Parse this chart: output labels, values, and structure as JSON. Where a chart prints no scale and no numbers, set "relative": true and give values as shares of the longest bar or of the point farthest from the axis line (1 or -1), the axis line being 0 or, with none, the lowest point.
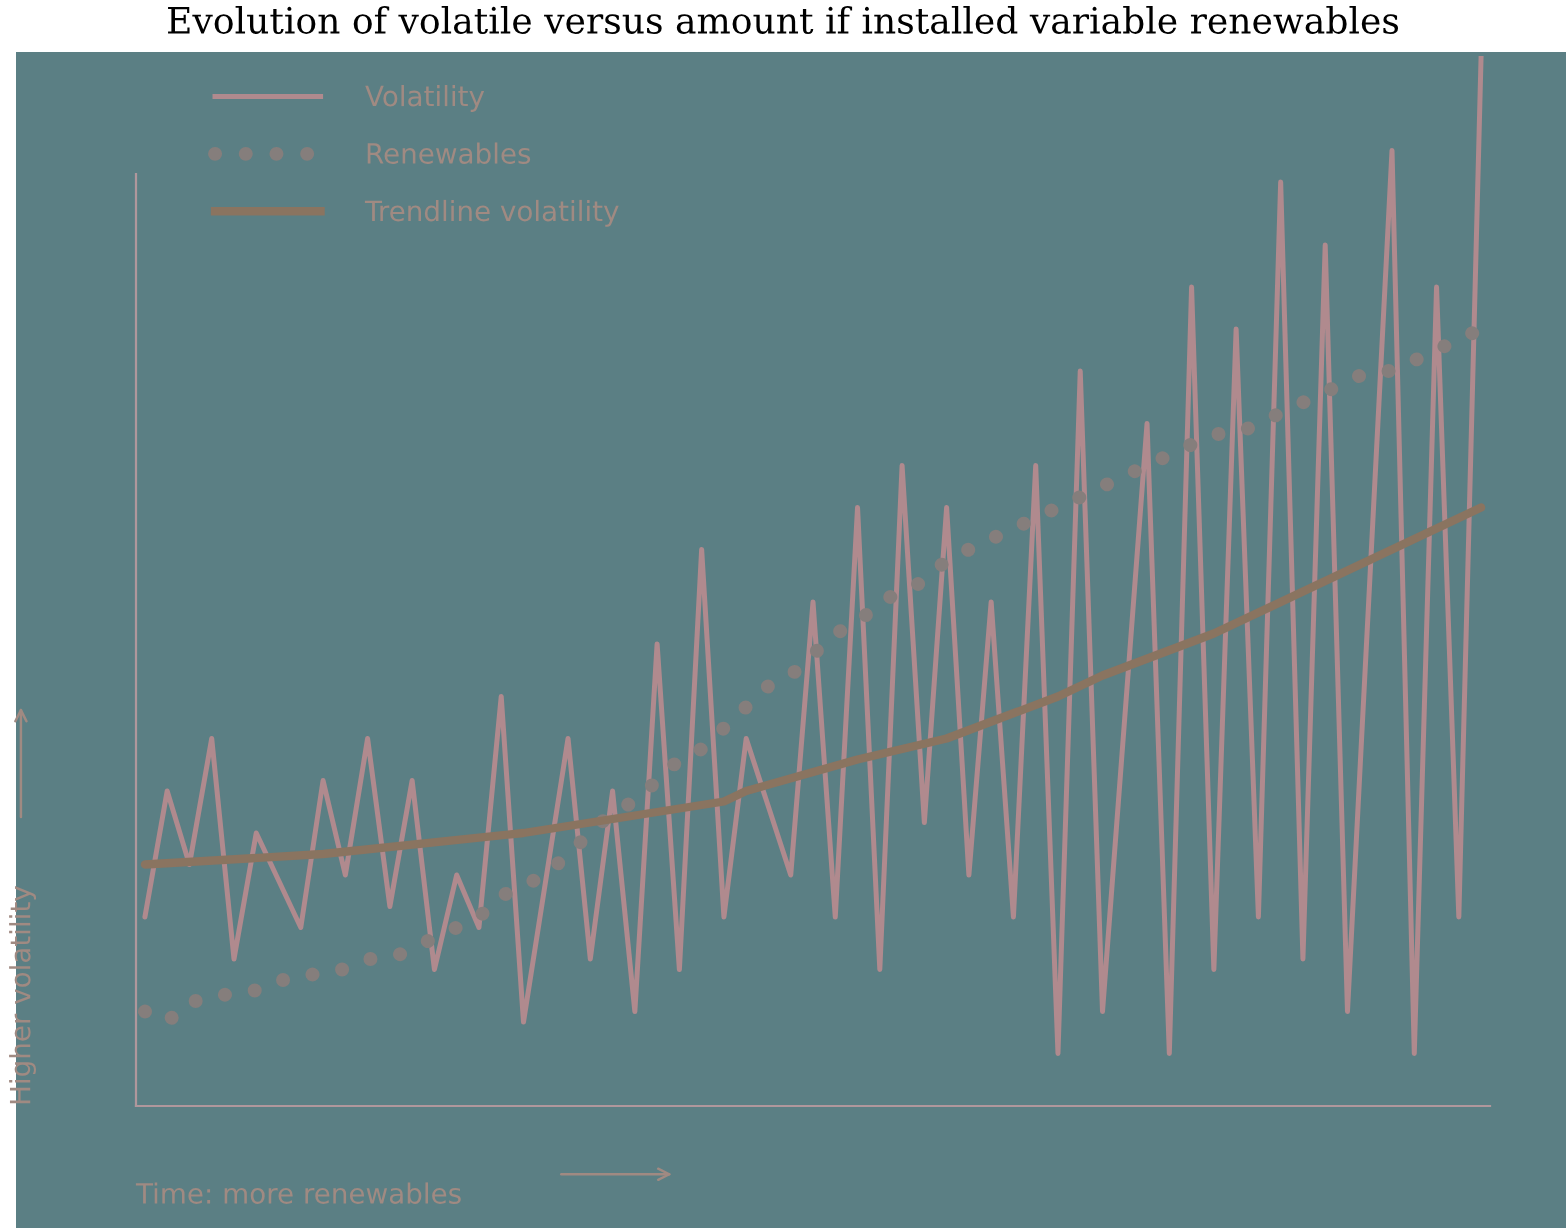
{
  "chart_data": {
    "type": "line",
    "title": "Evolution of volatile versus amount if installed variable renewables",
    "xlabel": "Time: more renewables",
    "ylabel": "Higher volatility",
    "relative": true,
    "legend": "top left",
    "marker": "none",
    "categories": [
      null,
      null,
      null,
      null,
      null,
      null,
      null,
      null,
      null,
      null,
      null,
      null,
      null,
      null,
      null,
      null,
      null,
      null,
      null,
      null,
      null,
      null,
      null,
      null,
      null,
      null,
      null,
      null,
      null,
      null,
      null,
      null,
      null,
      null,
      null,
      null,
      null,
      null,
      null,
      null,
      null,
      null,
      null,
      null,
      null,
      null,
      null,
      null,
      null,
      null,
      null,
      null,
      null,
      null,
      null,
      null,
      null,
      null,
      null,
      null,
      null
    ],
    "series": [
      {
        "name": "Volatility",
        "color": "#b08a8e",
        "line_style": "solid",
        "values": [
          0.18,
          0.3,
          0.23,
          0.35,
          0.14,
          0.26,
          null,
          0.17,
          0.31,
          0.22,
          0.35,
          0.19,
          0.31,
          0.13,
          0.22,
          0.17,
          0.39,
          0.08,
          null,
          0.35,
          0.14,
          0.3,
          0.09,
          0.44,
          0.13,
          0.53,
          0.18,
          0.35,
          null,
          0.22,
          0.48,
          0.18,
          0.57,
          0.13,
          0.61,
          0.27,
          0.57,
          0.22,
          0.48,
          0.18,
          0.61,
          0.05,
          0.7,
          0.09,
          null,
          0.65,
          0.05,
          0.78,
          0.13,
          0.74,
          0.18,
          0.88,
          0.14,
          0.82,
          0.09,
          null,
          0.91,
          0.05,
          0.78,
          0.18,
          1
        ]
      },
      {
        "name": "Renewables",
        "color": "#857e7c",
        "line_style": "dotted",
        "values": [
          0.09,
          0.08,
          0.1,
          0.1,
          0.11,
          0.11,
          0.12,
          0.12,
          0.13,
          0.13,
          0.14,
          0.14,
          0.15,
          0.16,
          0.17,
          0.18,
          0.2,
          0.21,
          0.22,
          0.24,
          0.26,
          0.28,
          0.29,
          0.31,
          0.33,
          0.34,
          0.36,
          0.38,
          0.4,
          0.41,
          0.43,
          0.45,
          0.46,
          0.48,
          0.49,
          0.5,
          0.52,
          0.53,
          0.54,
          0.55,
          0.56,
          0.57,
          0.58,
          0.59,
          0.6,
          0.61,
          0.62,
          0.63,
          0.64,
          0.64,
          0.65,
          0.66,
          0.67,
          0.68,
          0.69,
          0.7,
          0.7,
          0.71,
          0.72,
          0.73,
          0.74
        ]
      },
      {
        "name": "Trendline volatility",
        "color": "#8a7460",
        "line_style": "solid",
        "values": [
          0.23,
          null,
          null,
          null,
          null,
          null,
          null,
          null,
          0.24,
          null,
          null,
          null,
          null,
          null,
          null,
          null,
          null,
          0.26,
          null,
          null,
          null,
          null,
          null,
          0.28,
          null,
          null,
          0.29,
          0.3,
          null,
          null,
          null,
          null,
          0.33,
          null,
          null,
          null,
          0.35,
          null,
          null,
          null,
          null,
          0.39,
          null,
          0.41,
          null,
          null,
          null,
          null,
          0.45,
          null,
          null,
          null,
          null,
          null,
          0.51,
          null,
          null,
          null,
          null,
          null,
          0.57
        ]
      }
    ]
  }
}
